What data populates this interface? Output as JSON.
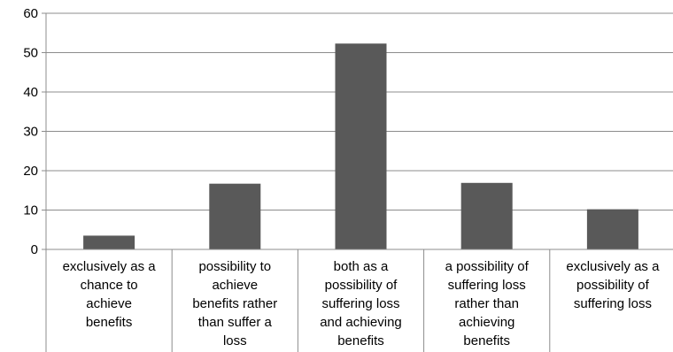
{
  "chart_data": {
    "type": "bar",
    "categories": [
      [
        "exclusively as a",
        "chance to",
        "achieve",
        "benefits"
      ],
      [
        "possibility to",
        "achieve",
        "benefits rather",
        "than suffer a",
        "loss"
      ],
      [
        "both as a",
        "possibility of",
        "suffering loss",
        "and achieving",
        "benefits"
      ],
      [
        "a possibility of",
        "suffering loss",
        "rather than",
        "achieving",
        "benefits"
      ],
      [
        "exclusively as a",
        "possibility of",
        "suffering loss"
      ]
    ],
    "values": [
      3.5,
      16.7,
      52.3,
      16.9,
      10.2
    ],
    "ylim": [
      0,
      60
    ],
    "yticks": [
      "0",
      "10",
      "20",
      "30",
      "40",
      "50",
      "60"
    ],
    "grid": true,
    "legend": "none",
    "colors": {
      "bar": "#595959",
      "grid": "#8c8c8c",
      "axis": "#8c8c8c"
    }
  }
}
